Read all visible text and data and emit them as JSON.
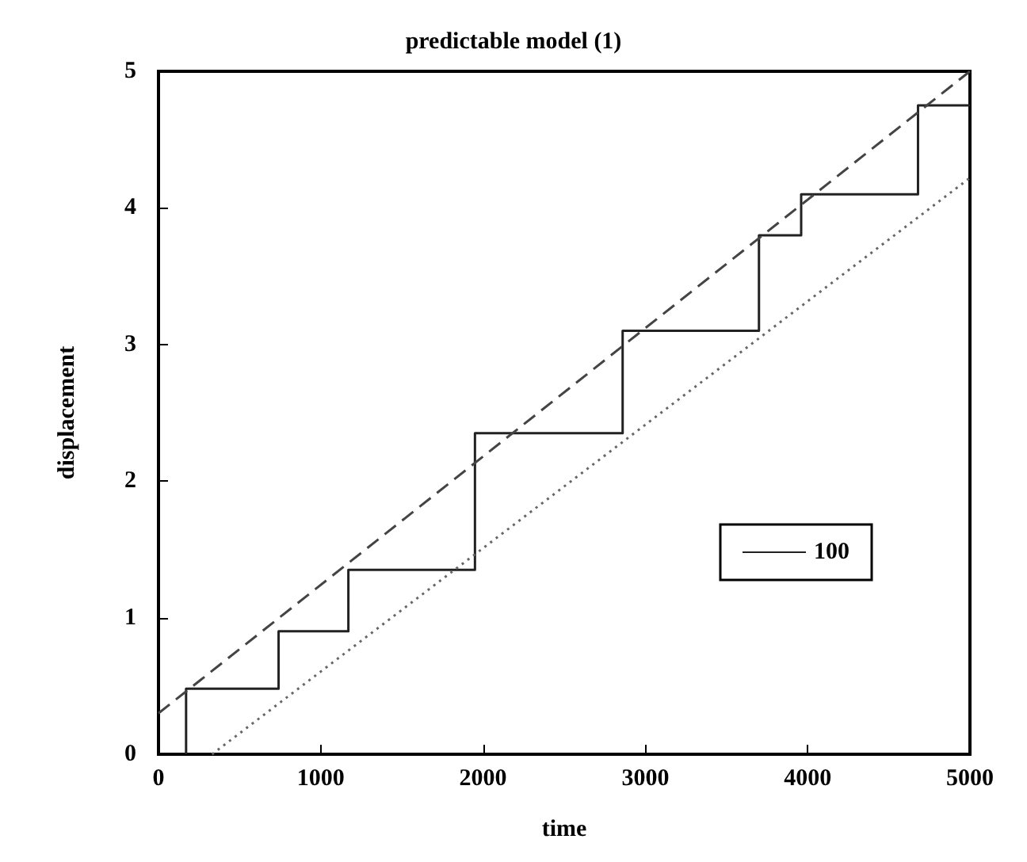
{
  "chart_data": {
    "type": "line",
    "title": "predictable model (1)",
    "xlabel": "time",
    "ylabel": "displacement",
    "xlim": [
      0,
      5000
    ],
    "ylim": [
      0,
      5
    ],
    "xticks": [
      0,
      1000,
      2000,
      3000,
      4000,
      5000
    ],
    "yticks": [
      0,
      1,
      2,
      3,
      4,
      5
    ],
    "grid": false,
    "legend": "bottom right",
    "marker": "none",
    "series": [
      {
        "name": "100",
        "type": "step",
        "color": "#222222",
        "line_style": "solid",
        "x": [
          170,
          170,
          740,
          1170,
          1950,
          2860,
          3700,
          3960,
          4680,
          5000
        ],
        "values": [
          0,
          0.48,
          0.9,
          1.35,
          2.35,
          3.1,
          3.8,
          4.1,
          4.75,
          4.75
        ]
      },
      {
        "color": "#444444",
        "line_style": "dashed",
        "x": [
          0,
          5000
        ],
        "values": [
          0.3,
          5
        ]
      },
      {
        "color": "#666666",
        "line_style": "dotted",
        "x": [
          330,
          5000
        ],
        "values": [
          0,
          4.22
        ]
      }
    ]
  }
}
